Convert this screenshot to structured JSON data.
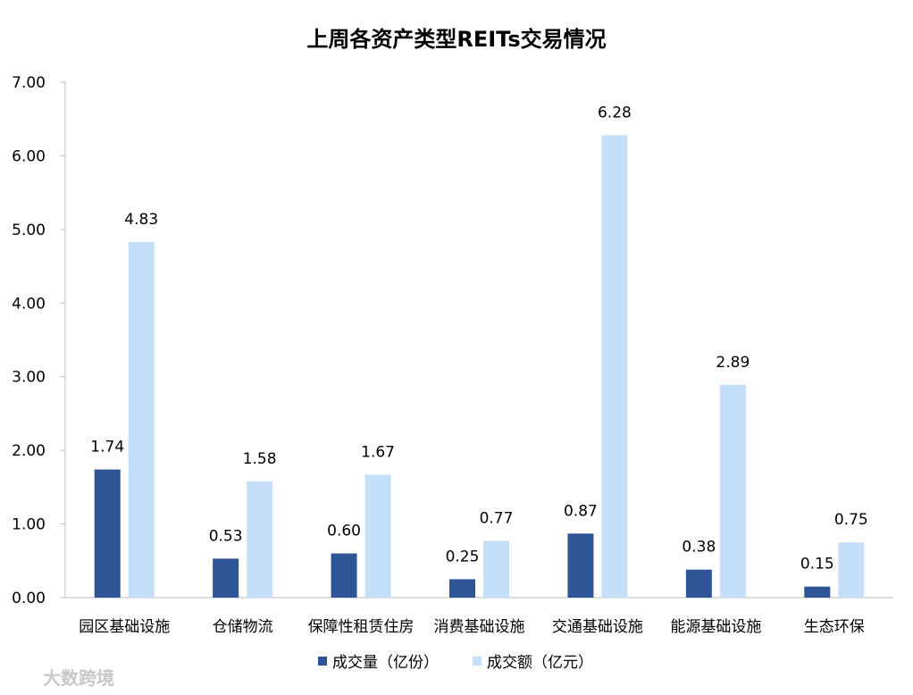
{
  "watermark": "大数跨境",
  "chart_data": {
    "type": "bar",
    "title": "上周各资产类型REITs交易情况",
    "categories": [
      "园区基础设施",
      "仓储物流",
      "保障性租赁住房",
      "消费基础设施",
      "交通基础设施",
      "能源基础设施",
      "生态环保"
    ],
    "series": [
      {
        "name": "成交量（亿份）",
        "color": "#2f5597",
        "values": [
          1.74,
          0.53,
          0.6,
          0.25,
          0.87,
          0.38,
          0.15
        ]
      },
      {
        "name": "成交额（亿元）",
        "color": "#c5dff8",
        "values": [
          4.83,
          1.58,
          1.67,
          0.77,
          6.28,
          2.89,
          0.75
        ]
      }
    ],
    "ylim": [
      0,
      7
    ],
    "yticks": [
      "0.00",
      "1.00",
      "2.00",
      "3.00",
      "4.00",
      "5.00",
      "6.00",
      "7.00"
    ],
    "grid": false,
    "legend": "bottom",
    "data_labels": true
  }
}
